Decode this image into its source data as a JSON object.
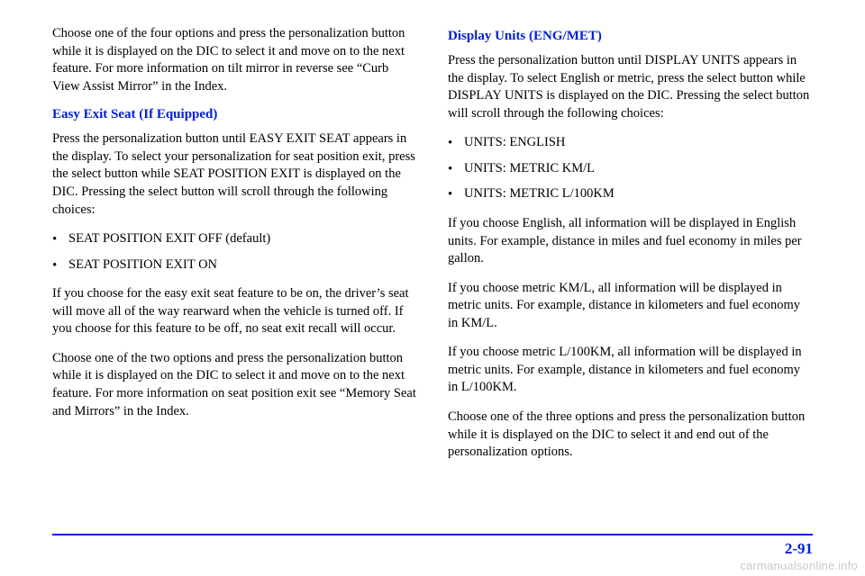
{
  "colors": {
    "link_blue": "#0020d6",
    "text": "#000000",
    "background": "#ffffff",
    "watermark": "rgba(0,0,0,0.22)"
  },
  "left": {
    "intro": "Choose one of the four options and press the personalization button while it is displayed on the DIC to select it and move on to the next feature. For more information on tilt mirror in reverse see “Curb View Assist Mirror” in the Index.",
    "heading": "Easy Exit Seat (If Equipped)",
    "p1": "Press the personalization button until EASY EXIT SEAT appears in the display. To select your personalization for seat position exit, press the select button while SEAT POSITION EXIT is displayed on the DIC. Pressing the select button will scroll through the following choices:",
    "choices": {
      "0": "SEAT POSITION EXIT OFF (default)",
      "1": "SEAT POSITION EXIT ON"
    },
    "p2": "If you choose for the easy exit seat feature to be on, the driver’s seat will move all of the way rearward when the vehicle is turned off. If you choose for this feature to be off, no seat exit recall will occur.",
    "p3": "Choose one of the two options and press the personalization button while it is displayed on the DIC to select it and move on to the next feature. For more information on seat position exit see “Memory Seat and Mirrors” in the Index."
  },
  "right": {
    "heading": "Display Units (ENG/MET)",
    "p1": "Press the personalization button until DISPLAY UNITS appears in the display. To select English or metric, press the select button while DISPLAY UNITS is displayed on the DIC. Pressing the select button will scroll through the following choices:",
    "choices": {
      "0": "UNITS: ENGLISH",
      "1": "UNITS: METRIC KM/L",
      "2": "UNITS: METRIC L/100KM"
    },
    "p2": "If you choose English, all information will be displayed in English units. For example, distance in miles and fuel economy in miles per gallon.",
    "p3": "If you choose metric KM/L, all information will be displayed in metric units. For example, distance in kilometers and fuel economy in KM/L.",
    "p4": "If you choose metric L/100KM, all information will be displayed in metric units. For example, distance in kilometers and fuel economy in L/100KM.",
    "p5": "Choose one of the three options and press the personalization button while it is displayed on the DIC to select it and end out of the personalization options."
  },
  "page_number": "2-91",
  "watermark": "carmanualsonline.info"
}
